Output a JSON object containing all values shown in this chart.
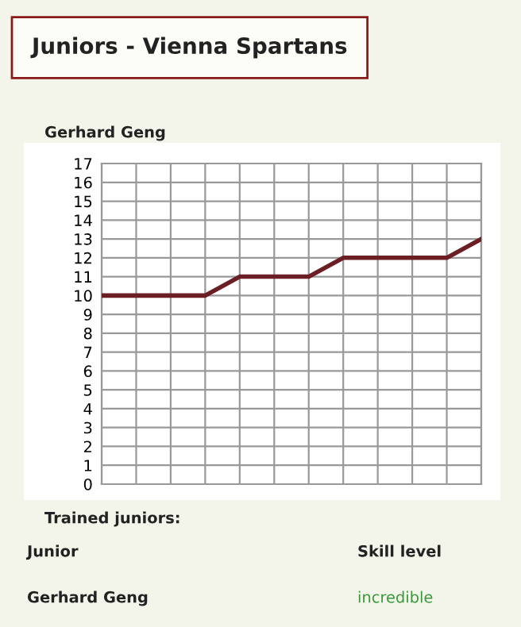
{
  "chart_data": {
    "type": "line",
    "title": "Juniors - Vienna Spartans",
    "subtitle": "Gerhard Geng",
    "categories": [
      null,
      null,
      null,
      null,
      null,
      null,
      null,
      null,
      null,
      null,
      null,
      null
    ],
    "series": [
      {
        "color": "#6b1f24",
        "values": [
          10,
          10,
          10,
          10,
          11,
          11,
          11,
          12,
          12,
          12,
          12,
          13
        ]
      }
    ],
    "ylim": [
      0,
      17
    ],
    "yticks": [
      0,
      1,
      2,
      3,
      4,
      5,
      6,
      7,
      8,
      9,
      10,
      11,
      12,
      13,
      14,
      15,
      16,
      17
    ],
    "grid": true,
    "tick_labels": "y",
    "marker": "none",
    "line_style": "solid",
    "annotations": [
      "Trained juniors:",
      "Junior",
      "Skill level",
      "Gerhard Geng",
      "incredible"
    ]
  }
}
